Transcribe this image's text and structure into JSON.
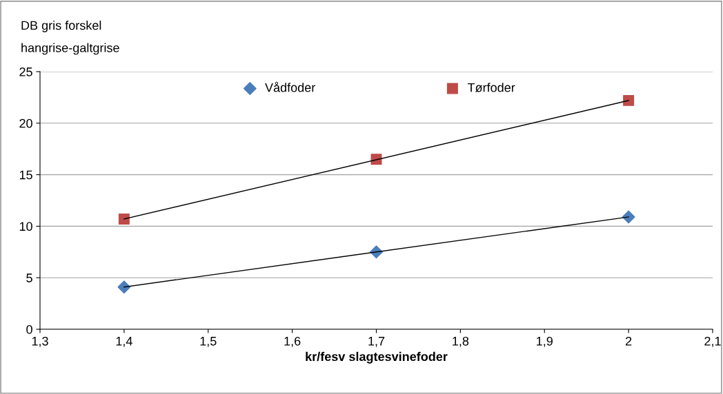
{
  "chart_data": {
    "type": "scatter",
    "ylabel": "DB gris forskel\nhangrise-galtgrise",
    "xlabel": "kr/fesv slagtesvinefoder",
    "series": [
      {
        "name": "Vådfoder",
        "color": "#4a7ebb",
        "marker": "diamond",
        "x": [
          1.4,
          1.7,
          2.0
        ],
        "values": [
          4.1,
          7.5,
          10.9
        ]
      },
      {
        "name": "Tørfoder",
        "color": "#be4b48",
        "marker": "square",
        "x": [
          1.4,
          1.7,
          2.0
        ],
        "values": [
          10.7,
          16.5,
          22.2
        ]
      },
      {
        "type": "line",
        "color": "#000000",
        "marker": "none",
        "line_style": "solid",
        "x": [
          1.4,
          2.0
        ],
        "values": [
          4.1,
          10.9
        ]
      },
      {
        "type": "line",
        "color": "#000000",
        "marker": "none",
        "line_style": "solid",
        "x": [
          1.4,
          2.0
        ],
        "values": [
          10.7,
          22.2
        ]
      }
    ],
    "xlim": [
      1.3,
      2.1
    ],
    "xticks": [
      {
        "value": 1.3,
        "label": "1,3"
      },
      {
        "value": 1.4,
        "label": "1,4"
      },
      {
        "value": 1.5,
        "label": "1,5"
      },
      {
        "value": 1.6,
        "label": "1,6"
      },
      {
        "value": 1.7,
        "label": "1,7"
      },
      {
        "value": 1.8,
        "label": "1,8"
      },
      {
        "value": 1.9,
        "label": "1,9"
      },
      {
        "value": 2,
        "label": "2"
      },
      {
        "value": 2.1,
        "label": "2,1"
      }
    ],
    "ylim": [
      0,
      25
    ],
    "yticks": [
      0,
      5,
      10,
      15,
      20,
      25
    ],
    "grid": "y",
    "legend": "top"
  }
}
